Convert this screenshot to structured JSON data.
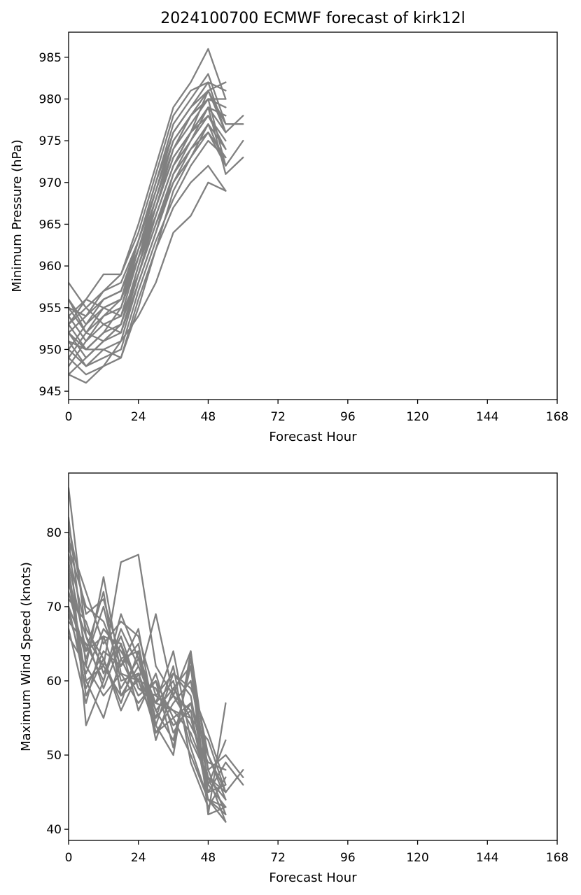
{
  "chart_data": [
    {
      "type": "line",
      "title": "2024100700 ECMWF forecast of kirk12l",
      "xlabel": "Forecast Hour",
      "ylabel": "Minimum Pressure (hPa)",
      "xlim": [
        0,
        168
      ],
      "ylim": [
        944,
        988
      ],
      "xticks": [
        0,
        24,
        48,
        72,
        96,
        120,
        144,
        168
      ],
      "yticks": [
        945,
        950,
        955,
        960,
        965,
        970,
        975,
        980,
        985
      ],
      "color": "#808080",
      "grid": false,
      "series": [
        {
          "x": [
            0,
            6,
            12,
            18,
            24,
            30,
            36,
            42,
            48,
            54
          ],
          "values": [
            958,
            955,
            957,
            959,
            965,
            972,
            979,
            982,
            986,
            980
          ]
        },
        {
          "x": [
            0,
            6,
            12,
            18,
            24,
            30,
            36,
            42,
            48,
            54
          ],
          "values": [
            956,
            953,
            955,
            956,
            963,
            970,
            977,
            980,
            983,
            977
          ]
        },
        {
          "x": [
            0,
            6,
            12,
            18,
            24,
            30,
            36,
            42,
            48,
            54,
            60
          ],
          "values": [
            955,
            952,
            954,
            955,
            962,
            969,
            976,
            979,
            982,
            976,
            978
          ]
        },
        {
          "x": [
            0,
            6,
            12,
            18,
            24,
            30,
            36,
            42,
            48,
            54,
            60
          ],
          "values": [
            954,
            951,
            953,
            954,
            961,
            968,
            975,
            978,
            981,
            977,
            977
          ]
        },
        {
          "x": [
            0,
            6,
            12,
            18,
            24,
            30,
            36,
            42,
            48,
            54,
            60
          ],
          "values": [
            953,
            950,
            952,
            953,
            960,
            967,
            974,
            977,
            980,
            972,
            975
          ]
        },
        {
          "x": [
            0,
            6,
            12,
            18,
            24,
            30,
            36,
            42,
            48,
            54,
            60
          ],
          "values": [
            952,
            949,
            951,
            952,
            959,
            966,
            972,
            976,
            979,
            971,
            973
          ]
        },
        {
          "x": [
            0,
            6,
            12,
            18,
            24,
            30,
            36,
            42,
            48,
            54
          ],
          "values": [
            951,
            948,
            950,
            951,
            958,
            964,
            970,
            974,
            977,
            972
          ]
        },
        {
          "x": [
            0,
            6,
            12,
            18,
            24,
            30,
            36,
            42,
            48,
            54
          ],
          "values": [
            950,
            948,
            949,
            950,
            957,
            963,
            968,
            972,
            975,
            973
          ]
        },
        {
          "x": [
            0,
            6,
            12,
            18,
            24,
            30,
            36,
            42,
            48,
            54
          ],
          "values": [
            949,
            947,
            948,
            949,
            955,
            962,
            967,
            970,
            972,
            969
          ]
        },
        {
          "x": [
            0,
            6,
            12,
            18,
            24,
            30,
            36,
            42,
            48,
            54
          ],
          "values": [
            947,
            946,
            948,
            951,
            954,
            958,
            964,
            966,
            970,
            969
          ]
        },
        {
          "x": [
            0,
            6,
            12,
            18,
            24,
            30,
            36,
            42,
            48,
            54
          ],
          "values": [
            953,
            956,
            959,
            959,
            964,
            971,
            978,
            981,
            982,
            981
          ]
        },
        {
          "x": [
            0,
            6,
            12,
            18,
            24,
            30,
            36,
            42,
            48,
            54
          ],
          "values": [
            952,
            954,
            957,
            958,
            963,
            970,
            976,
            979,
            981,
            982
          ]
        },
        {
          "x": [
            0,
            6,
            12,
            18,
            24,
            30,
            36,
            42,
            48,
            54
          ],
          "values": [
            954,
            956,
            955,
            956,
            962,
            968,
            974,
            978,
            980,
            980
          ]
        },
        {
          "x": [
            0,
            6,
            12,
            18,
            24,
            30,
            36,
            42,
            48,
            54
          ],
          "values": [
            950,
            953,
            956,
            957,
            962,
            967,
            973,
            976,
            979,
            978
          ]
        },
        {
          "x": [
            0,
            6,
            12,
            18,
            24,
            30,
            36,
            42,
            48,
            54
          ],
          "values": [
            948,
            951,
            954,
            956,
            961,
            966,
            972,
            975,
            978,
            974
          ]
        },
        {
          "x": [
            0,
            6,
            12,
            18,
            24,
            30,
            36,
            42,
            48,
            54
          ],
          "values": [
            947,
            949,
            951,
            953,
            959,
            965,
            970,
            973,
            976,
            973
          ]
        },
        {
          "x": [
            0,
            6,
            12,
            18,
            24,
            30,
            36,
            42,
            48,
            54
          ],
          "values": [
            951,
            950,
            952,
            955,
            961,
            967,
            973,
            976,
            978,
            975
          ]
        },
        {
          "x": [
            0,
            6,
            12,
            18,
            24,
            30,
            36,
            42,
            48,
            54
          ],
          "values": [
            955,
            954,
            956,
            957,
            963,
            969,
            975,
            978,
            980,
            979
          ]
        },
        {
          "x": [
            0,
            6,
            12,
            18,
            24,
            30,
            36,
            42,
            48,
            54
          ],
          "values": [
            953,
            955,
            953,
            952,
            958,
            964,
            971,
            975,
            979,
            976
          ]
        },
        {
          "x": [
            0,
            6,
            12,
            18,
            24,
            30,
            36,
            42,
            48,
            54
          ],
          "values": [
            952,
            950,
            950,
            949,
            956,
            962,
            969,
            973,
            977,
            974
          ]
        },
        {
          "x": [
            0,
            6,
            12,
            18,
            24,
            30,
            36,
            42,
            48,
            54
          ],
          "values": [
            956,
            952,
            951,
            953,
            960,
            966,
            972,
            976,
            981,
            976
          ]
        },
        {
          "x": [
            0,
            6,
            12,
            18,
            24,
            30,
            36,
            42,
            48,
            54
          ],
          "values": [
            949,
            952,
            955,
            954,
            959,
            965,
            971,
            974,
            976,
            972
          ]
        }
      ]
    },
    {
      "type": "line",
      "xlabel": "Forecast Hour",
      "ylabel": "Maximum Wind Speed (knots)",
      "xlim": [
        0,
        168
      ],
      "ylim": [
        38.5,
        88
      ],
      "xticks": [
        0,
        24,
        48,
        72,
        96,
        120,
        144,
        168
      ],
      "yticks": [
        40,
        50,
        60,
        70,
        80
      ],
      "color": "#808080",
      "grid": false,
      "series": [
        {
          "x": [
            0,
            6,
            12,
            18,
            24,
            30,
            36,
            42,
            48,
            54
          ],
          "values": [
            86,
            66,
            62,
            76,
            77,
            62,
            58,
            56,
            44,
            42
          ]
        },
        {
          "x": [
            0,
            6,
            12,
            18,
            24,
            30,
            36,
            42,
            48,
            54,
            60
          ],
          "values": [
            82,
            62,
            74,
            61,
            60,
            69,
            58,
            64,
            48,
            50,
            47
          ]
        },
        {
          "x": [
            0,
            6,
            12,
            18,
            24,
            30,
            36,
            42,
            48,
            54,
            60
          ],
          "values": [
            80,
            54,
            60,
            69,
            63,
            57,
            64,
            52,
            47,
            45,
            48
          ]
        },
        {
          "x": [
            0,
            6,
            12,
            18,
            24,
            30,
            36,
            42,
            48,
            54,
            60
          ],
          "values": [
            78,
            70,
            68,
            62,
            67,
            54,
            61,
            58,
            45,
            49,
            46
          ]
        },
        {
          "x": [
            0,
            6,
            12,
            18,
            24,
            30,
            36,
            42,
            48,
            54
          ],
          "values": [
            76,
            64,
            72,
            58,
            62,
            56,
            52,
            62,
            42,
            57
          ]
        },
        {
          "x": [
            0,
            6,
            12,
            18,
            24,
            30,
            36,
            42,
            48,
            54
          ],
          "values": [
            75,
            60,
            55,
            63,
            58,
            60,
            55,
            50,
            44,
            41
          ]
        },
        {
          "x": [
            0,
            6,
            12,
            18,
            24,
            30,
            36,
            42,
            48,
            54
          ],
          "values": [
            74,
            58,
            63,
            57,
            64,
            52,
            59,
            55,
            46,
            43
          ]
        },
        {
          "x": [
            0,
            6,
            12,
            18,
            24,
            30,
            36,
            42,
            48,
            54
          ],
          "values": [
            73,
            66,
            59,
            65,
            56,
            61,
            53,
            57,
            50,
            45
          ]
        },
        {
          "x": [
            0,
            6,
            12,
            18,
            24,
            30,
            36,
            42,
            48,
            54
          ],
          "values": [
            72,
            63,
            70,
            60,
            61,
            55,
            62,
            49,
            43,
            47
          ]
        },
        {
          "x": [
            0,
            6,
            12,
            18,
            24,
            30,
            36,
            42,
            48,
            54
          ],
          "values": [
            71,
            68,
            61,
            66,
            59,
            58,
            56,
            53,
            47,
            44
          ]
        },
        {
          "x": [
            0,
            6,
            12,
            18,
            24,
            30,
            36,
            42,
            48,
            54
          ],
          "values": [
            70,
            59,
            64,
            62,
            65,
            53,
            57,
            60,
            48,
            42
          ]
        },
        {
          "x": [
            0,
            6,
            12,
            18,
            24,
            30,
            36,
            42,
            48,
            54
          ],
          "values": [
            69,
            61,
            67,
            64,
            60,
            59,
            54,
            56,
            45,
            46
          ]
        },
        {
          "x": [
            0,
            6,
            12,
            18,
            24,
            30,
            36,
            42,
            48,
            54
          ],
          "values": [
            68,
            65,
            60,
            67,
            62,
            57,
            60,
            51,
            44,
            43
          ]
        },
        {
          "x": [
            0,
            6,
            12,
            18,
            24,
            30,
            36,
            42,
            48,
            54
          ],
          "values": [
            67,
            57,
            66,
            59,
            63,
            55,
            58,
            54,
            49,
            48
          ]
        },
        {
          "x": [
            0,
            6,
            12,
            18,
            24,
            30,
            36,
            42,
            48,
            54
          ],
          "values": [
            66,
            62,
            58,
            61,
            57,
            60,
            51,
            63,
            46,
            52
          ]
        },
        {
          "x": [
            0,
            6,
            12,
            18,
            24,
            30,
            36,
            42,
            48,
            54
          ],
          "values": [
            79,
            72,
            65,
            68,
            66,
            58,
            61,
            59,
            53,
            46
          ]
        },
        {
          "x": [
            0,
            6,
            12,
            18,
            24,
            30,
            36,
            42,
            48,
            54
          ],
          "values": [
            77,
            67,
            63,
            56,
            61,
            53,
            55,
            57,
            47,
            41
          ]
        },
        {
          "x": [
            0,
            6,
            12,
            18,
            24,
            30,
            36,
            42,
            48,
            54
          ],
          "values": [
            81,
            69,
            71,
            63,
            64,
            56,
            59,
            62,
            50,
            44
          ]
        },
        {
          "x": [
            0,
            6,
            12,
            18,
            24,
            30,
            36,
            42,
            48,
            54
          ],
          "values": [
            74,
            60,
            62,
            58,
            60,
            54,
            50,
            64,
            42,
            43
          ]
        },
        {
          "x": [
            0,
            6,
            12,
            18,
            24,
            30,
            36,
            42,
            48,
            54
          ],
          "values": [
            70,
            64,
            66,
            65,
            59,
            57,
            56,
            55,
            52,
            45
          ]
        }
      ]
    }
  ]
}
